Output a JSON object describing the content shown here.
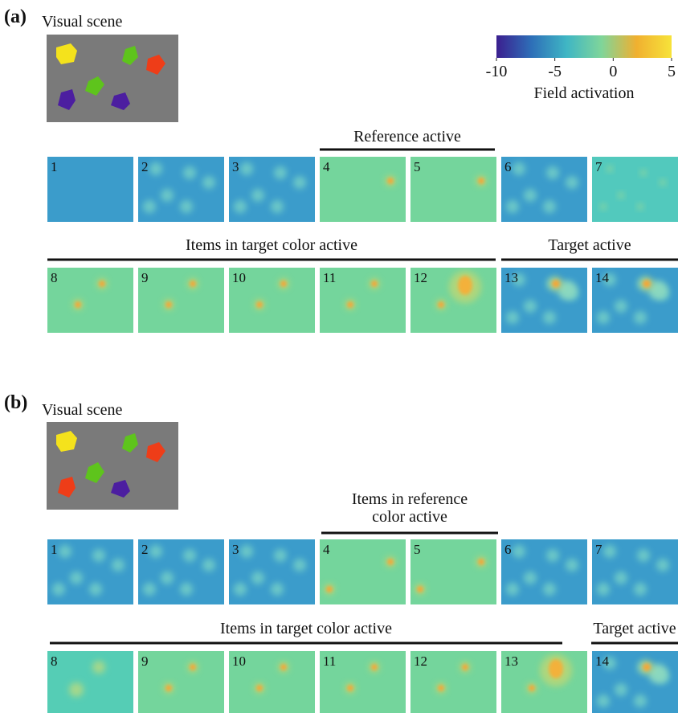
{
  "colorbar": {
    "ticks": [
      -10,
      -5,
      0,
      5
    ],
    "lim": [
      -10,
      5
    ],
    "label": "Field activation",
    "colors": [
      "#3b1f8f",
      "#2e6fb8",
      "#3fb6c4",
      "#7fd59a",
      "#f0b030",
      "#f7e33a"
    ]
  },
  "panels": [
    {
      "label": "(a)",
      "scene_title": "Visual scene",
      "rows": [
        {
          "groups": [
            {
              "label": "Reference active"
            }
          ],
          "frames": [
            "1",
            "2",
            "3",
            "4",
            "5",
            "6",
            "7"
          ]
        },
        {
          "groups": [
            {
              "label": "Items in target color active"
            },
            {
              "label": "Target active"
            }
          ],
          "frames": [
            "8",
            "9",
            "10",
            "11",
            "12",
            "13",
            "14"
          ]
        }
      ]
    },
    {
      "label": "(b)",
      "scene_title": "Visual scene",
      "rows": [
        {
          "groups": [
            {
              "label": "Items in reference\ncolor  active"
            }
          ],
          "frames": [
            "1",
            "2",
            "3",
            "4",
            "5",
            "6",
            "7"
          ]
        },
        {
          "groups": [
            {
              "label": "Items in target color active"
            },
            {
              "label": "Target active"
            }
          ],
          "frames": [
            "8",
            "9",
            "10",
            "11",
            "12",
            "13",
            "14"
          ]
        }
      ]
    }
  ]
}
